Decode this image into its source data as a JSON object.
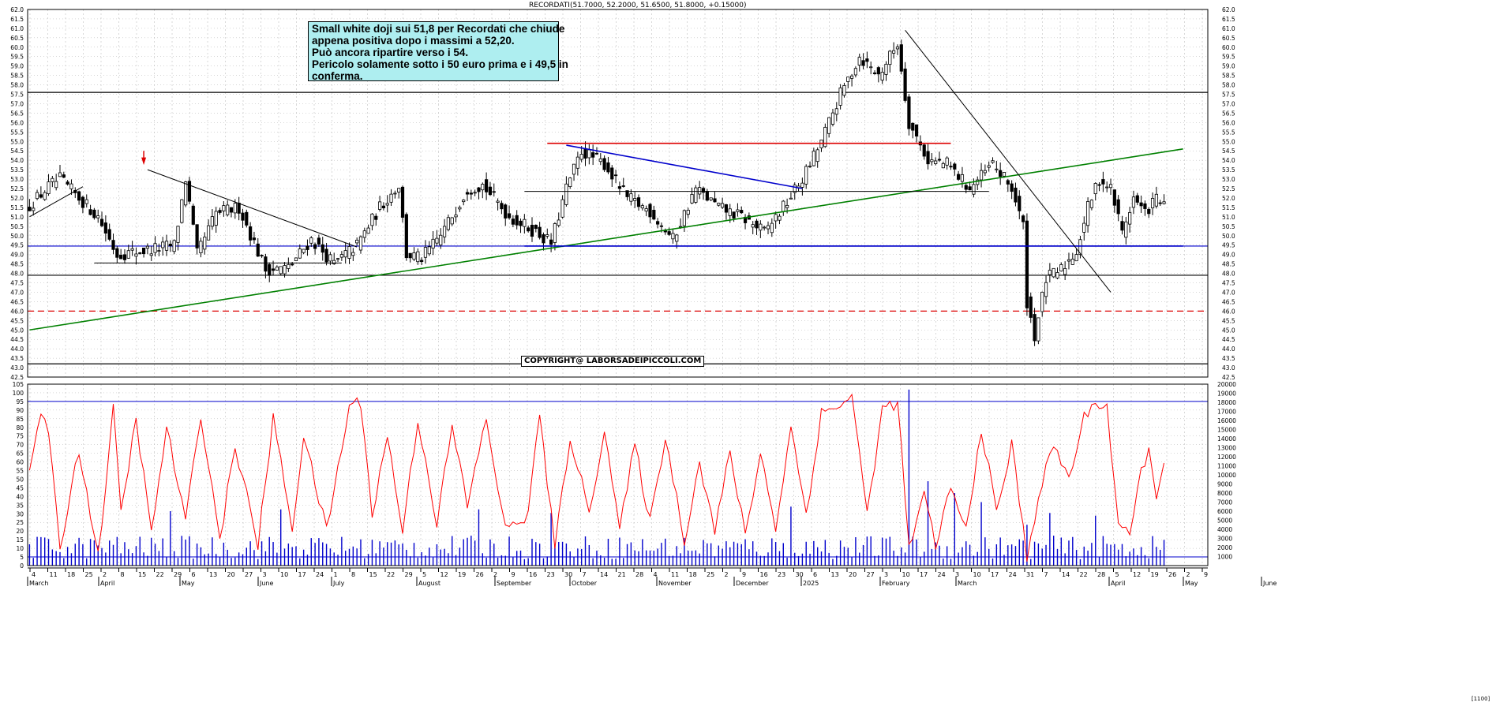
{
  "header": {
    "title": "RECORDATI(51.7000, 52.2000, 51.6500, 51.8000, +0.15000)"
  },
  "note": {
    "lines": [
      "Small white doji sui 51,8 per Recordati che chiude",
      "appena positiva dopo i massimi a 52,20.",
      "Può ancora ripartire verso i 54.",
      "Pericolo solamente sotto i 50 euro prima e i 49,5 in",
      "conferma."
    ]
  },
  "copyright": "COPYRIGHT@ LABORSADEIPICCOLI.COM",
  "corner_label": "[1100]",
  "colors": {
    "up": "#ffffff",
    "down": "#000000",
    "volume": "#0000cc",
    "oscillator": "#ff0000",
    "support_green": "#008000",
    "resistance_red": "#dd0000",
    "channel_blue": "#0000cc",
    "grid": "#b0b0b0"
  },
  "chart_data": [
    {
      "type": "candlestick",
      "title": "RECORDATI(51.7000, 52.2000, 51.6500, 51.8000, +0.15000)",
      "ylim": [
        42.5,
        62.0
      ],
      "y_ticks": [
        "62.0",
        "61.5",
        "61.0",
        "60.5",
        "60.0",
        "59.5",
        "59.0",
        "58.5",
        "58.0",
        "57.5",
        "57.0",
        "56.5",
        "56.0",
        "55.5",
        "55.0",
        "54.5",
        "54.0",
        "53.5",
        "53.0",
        "52.5",
        "52.0",
        "51.5",
        "51.0",
        "50.5",
        "50.0",
        "49.5",
        "49.0",
        "48.5",
        "48.0",
        "47.5",
        "47.0",
        "46.5",
        "46.0",
        "45.5",
        "45.0",
        "44.5",
        "44.0",
        "43.5",
        "43.0",
        "42.5"
      ],
      "x_week_labels": [
        "4",
        "11",
        "18",
        "25",
        "2",
        "8",
        "15",
        "22",
        "29",
        "6",
        "13",
        "20",
        "27",
        "3",
        "10",
        "17",
        "24",
        "1",
        "8",
        "15",
        "22",
        "29",
        "5",
        "12",
        "19",
        "26",
        "2",
        "9",
        "16",
        "23",
        "30",
        "7",
        "14",
        "21",
        "28",
        "4",
        "11",
        "18",
        "25",
        "2",
        "9",
        "16",
        "23",
        "30",
        "6",
        "13",
        "20",
        "27",
        "3",
        "10",
        "17",
        "24",
        "3",
        "10",
        "17",
        "24",
        "31",
        "7",
        "14",
        "22",
        "28",
        "5",
        "12",
        "19",
        "26",
        "2",
        "9"
      ],
      "x_month_labels": [
        "March",
        "April",
        "May",
        "June",
        "July",
        "August",
        "September",
        "October",
        "November",
        "December",
        "2025",
        "February",
        "March",
        "April",
        "May",
        "June"
      ],
      "anchors": [
        {
          "i": 0,
          "p": 51.6
        },
        {
          "i": 5,
          "p": 52.6
        },
        {
          "i": 8,
          "p": 53.0
        },
        {
          "i": 13,
          "p": 52.0
        },
        {
          "i": 18,
          "p": 51.0
        },
        {
          "i": 23,
          "p": 49.0
        },
        {
          "i": 30,
          "p": 49.2
        },
        {
          "i": 38,
          "p": 49.5
        },
        {
          "i": 41,
          "p": 53.0
        },
        {
          "i": 44,
          "p": 49.0
        },
        {
          "i": 49,
          "p": 51.2
        },
        {
          "i": 55,
          "p": 51.5
        },
        {
          "i": 62,
          "p": 48.2
        },
        {
          "i": 68,
          "p": 48.3
        },
        {
          "i": 74,
          "p": 49.8
        },
        {
          "i": 80,
          "p": 48.5
        },
        {
          "i": 86,
          "p": 49.5
        },
        {
          "i": 92,
          "p": 51.5
        },
        {
          "i": 97,
          "p": 52.7
        },
        {
          "i": 99,
          "p": 49.0
        },
        {
          "i": 103,
          "p": 48.8
        },
        {
          "i": 108,
          "p": 50.0
        },
        {
          "i": 115,
          "p": 52.5
        },
        {
          "i": 119,
          "p": 52.7
        },
        {
          "i": 126,
          "p": 51.0
        },
        {
          "i": 133,
          "p": 50.2
        },
        {
          "i": 137,
          "p": 49.6
        },
        {
          "i": 141,
          "p": 52.5
        },
        {
          "i": 145,
          "p": 54.5
        },
        {
          "i": 151,
          "p": 53.8
        },
        {
          "i": 157,
          "p": 52.0
        },
        {
          "i": 163,
          "p": 51.3
        },
        {
          "i": 169,
          "p": 49.8
        },
        {
          "i": 175,
          "p": 52.5
        },
        {
          "i": 181,
          "p": 51.5
        },
        {
          "i": 187,
          "p": 51.0
        },
        {
          "i": 193,
          "p": 50.2
        },
        {
          "i": 198,
          "p": 51.5
        },
        {
          "i": 203,
          "p": 53.0
        },
        {
          "i": 208,
          "p": 55.0
        },
        {
          "i": 213,
          "p": 57.5
        },
        {
          "i": 218,
          "p": 59.5
        },
        {
          "i": 223,
          "p": 58.5
        },
        {
          "i": 228,
          "p": 60.2
        },
        {
          "i": 231,
          "p": 56.0
        },
        {
          "i": 236,
          "p": 54.0
        },
        {
          "i": 241,
          "p": 53.8
        },
        {
          "i": 247,
          "p": 52.5
        },
        {
          "i": 253,
          "p": 53.8
        },
        {
          "i": 258,
          "p": 52.5
        },
        {
          "i": 261,
          "p": 50.5
        },
        {
          "i": 262,
          "p": 46.5
        },
        {
          "i": 264,
          "p": 44.7
        },
        {
          "i": 267,
          "p": 47.7
        },
        {
          "i": 271,
          "p": 48.2
        },
        {
          "i": 275,
          "p": 49.2
        },
        {
          "i": 278,
          "p": 51.5
        },
        {
          "i": 281,
          "p": 53.0
        },
        {
          "i": 284,
          "p": 52.5
        },
        {
          "i": 287,
          "p": 50.2
        },
        {
          "i": 290,
          "p": 52.0
        },
        {
          "i": 293,
          "p": 51.2
        },
        {
          "i": 296,
          "p": 52.0
        },
        {
          "i": 298,
          "p": 51.8
        }
      ],
      "last_bar": {
        "open": 51.7,
        "high": 52.2,
        "low": 51.65,
        "close": 51.8,
        "change": 0.15
      },
      "horizontal_levels": [
        {
          "y": 57.6,
          "color": "#000000",
          "style": "solid"
        },
        {
          "y": 47.9,
          "color": "#000000",
          "style": "solid"
        },
        {
          "y": 43.2,
          "color": "#000000",
          "style": "solid"
        },
        {
          "y": 46.0,
          "color": "#dd0000",
          "style": "dashed"
        },
        {
          "y": 49.45,
          "color": "#0000cc",
          "style": "solid"
        }
      ],
      "trendlines": [
        {
          "x1": 0,
          "y1": 51.0,
          "x2": 14,
          "y2": 52.6,
          "color": "#000000"
        },
        {
          "x1": 31,
          "y1": 53.5,
          "x2": 86,
          "y2": 49.4,
          "color": "#000000"
        },
        {
          "x1": 17,
          "y1": 48.55,
          "x2": 82,
          "y2": 48.55,
          "color": "#000000"
        },
        {
          "x1": 0,
          "y1": 45.0,
          "x2": 303,
          "y2": 54.6,
          "color": "#008000"
        },
        {
          "x1": 136,
          "y1": 54.9,
          "x2": 242,
          "y2": 54.9,
          "color": "#dd0000"
        },
        {
          "x1": 141,
          "y1": 54.8,
          "x2": 203,
          "y2": 52.5,
          "color": "#0000cc"
        },
        {
          "x1": 130,
          "y1": 49.45,
          "x2": 303,
          "y2": 49.45,
          "color": "#0000cc"
        },
        {
          "x1": 130,
          "y1": 52.35,
          "x2": 252,
          "y2": 52.35,
          "color": "#000000"
        },
        {
          "x1": 230,
          "y1": 60.9,
          "x2": 284,
          "y2": 47.0,
          "color": "#000000"
        }
      ]
    },
    {
      "type": "bar+line",
      "name": "oscillator-volume",
      "left_ylim": [
        0,
        105
      ],
      "left_ticks": [
        "105",
        "100",
        "95",
        "90",
        "85",
        "80",
        "75",
        "70",
        "65",
        "60",
        "55",
        "50",
        "45",
        "40",
        "35",
        "30",
        "25",
        "20",
        "15",
        "10",
        "5",
        "0"
      ],
      "right_ylim": [
        0,
        20000
      ],
      "right_ticks": [
        "20000",
        "19000",
        "18000",
        "17000",
        "16000",
        "15000",
        "14000",
        "13000",
        "12000",
        "11000",
        "10000",
        "9000",
        "8000",
        "7000",
        "6000",
        "5000",
        "4000",
        "3000",
        "2000",
        "1000"
      ],
      "reference_levels": [
        95,
        5
      ],
      "oscillator_anchors": [
        {
          "i": 0,
          "v": 55
        },
        {
          "i": 3,
          "v": 90
        },
        {
          "i": 5,
          "v": 75
        },
        {
          "i": 8,
          "v": 10
        },
        {
          "i": 13,
          "v": 68
        },
        {
          "i": 18,
          "v": 5
        },
        {
          "i": 22,
          "v": 90
        },
        {
          "i": 24,
          "v": 30
        },
        {
          "i": 28,
          "v": 85
        },
        {
          "i": 32,
          "v": 18
        },
        {
          "i": 36,
          "v": 80
        },
        {
          "i": 41,
          "v": 25
        },
        {
          "i": 45,
          "v": 88
        },
        {
          "i": 50,
          "v": 15
        },
        {
          "i": 54,
          "v": 70
        },
        {
          "i": 60,
          "v": 12
        },
        {
          "i": 64,
          "v": 85
        },
        {
          "i": 69,
          "v": 22
        },
        {
          "i": 72,
          "v": 75
        },
        {
          "i": 78,
          "v": 20
        },
        {
          "i": 84,
          "v": 92
        },
        {
          "i": 87,
          "v": 95
        },
        {
          "i": 90,
          "v": 30
        },
        {
          "i": 94,
          "v": 75
        },
        {
          "i": 98,
          "v": 20
        },
        {
          "i": 102,
          "v": 85
        },
        {
          "i": 107,
          "v": 25
        },
        {
          "i": 111,
          "v": 80
        },
        {
          "i": 115,
          "v": 35
        },
        {
          "i": 120,
          "v": 85
        },
        {
          "i": 125,
          "v": 20
        },
        {
          "i": 131,
          "v": 30
        },
        {
          "i": 134,
          "v": 88
        },
        {
          "i": 138,
          "v": 10
        },
        {
          "i": 142,
          "v": 75
        },
        {
          "i": 147,
          "v": 30
        },
        {
          "i": 151,
          "v": 80
        },
        {
          "i": 155,
          "v": 20
        },
        {
          "i": 159,
          "v": 70
        },
        {
          "i": 163,
          "v": 25
        },
        {
          "i": 167,
          "v": 75
        },
        {
          "i": 172,
          "v": 15
        },
        {
          "i": 176,
          "v": 60
        },
        {
          "i": 180,
          "v": 20
        },
        {
          "i": 184,
          "v": 65
        },
        {
          "i": 188,
          "v": 18
        },
        {
          "i": 192,
          "v": 65
        },
        {
          "i": 196,
          "v": 22
        },
        {
          "i": 200,
          "v": 80
        },
        {
          "i": 204,
          "v": 30
        },
        {
          "i": 208,
          "v": 88
        },
        {
          "i": 212,
          "v": 92
        },
        {
          "i": 216,
          "v": 98
        },
        {
          "i": 220,
          "v": 30
        },
        {
          "i": 224,
          "v": 90
        },
        {
          "i": 228,
          "v": 95
        },
        {
          "i": 231,
          "v": 10
        },
        {
          "i": 235,
          "v": 40
        },
        {
          "i": 238,
          "v": 12
        },
        {
          "i": 242,
          "v": 45
        },
        {
          "i": 246,
          "v": 20
        },
        {
          "i": 250,
          "v": 80
        },
        {
          "i": 254,
          "v": 30
        },
        {
          "i": 258,
          "v": 70
        },
        {
          "i": 262,
          "v": 5
        },
        {
          "i": 265,
          "v": 40
        },
        {
          "i": 269,
          "v": 70
        },
        {
          "i": 273,
          "v": 50
        },
        {
          "i": 277,
          "v": 85
        },
        {
          "i": 280,
          "v": 95
        },
        {
          "i": 283,
          "v": 92
        },
        {
          "i": 286,
          "v": 25
        },
        {
          "i": 289,
          "v": 15
        },
        {
          "i": 292,
          "v": 55
        },
        {
          "i": 294,
          "v": 68
        },
        {
          "i": 296,
          "v": 35
        },
        {
          "i": 298,
          "v": 62
        }
      ],
      "volume_spikes": [
        {
          "i": 37,
          "v": 6000
        },
        {
          "i": 66,
          "v": 6200
        },
        {
          "i": 118,
          "v": 6200
        },
        {
          "i": 137,
          "v": 5800
        },
        {
          "i": 200,
          "v": 6500
        },
        {
          "i": 231,
          "v": 19400
        },
        {
          "i": 236,
          "v": 9300
        },
        {
          "i": 243,
          "v": 8000
        },
        {
          "i": 250,
          "v": 7000
        },
        {
          "i": 262,
          "v": 4500
        },
        {
          "i": 268,
          "v": 5800
        },
        {
          "i": 280,
          "v": 5500
        }
      ]
    }
  ]
}
